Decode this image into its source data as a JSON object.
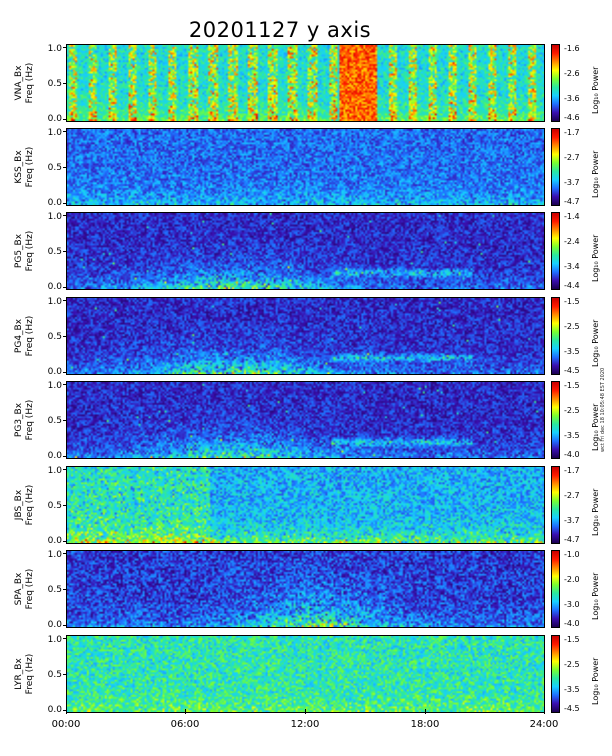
{
  "title": "20201127 y axis",
  "side_note": "wct Fri dec 18 10:05:48 EST 2020",
  "chart_data": {
    "type": "heatmap",
    "x_axis": {
      "range": [
        0,
        24
      ],
      "unit": "hours",
      "tick_labels": [
        "00:00",
        "06:00",
        "12:00",
        "18:00",
        "24:00"
      ]
    },
    "y_axis": {
      "range": [
        0,
        1.0
      ],
      "unit": "Hz",
      "tick_labels": [
        "0.0",
        "0.5",
        "1.0"
      ]
    },
    "colorbar_label": "Log₁₀ Power",
    "colormap": [
      "#1a0050",
      "#3a0fb0",
      "#1f6fff",
      "#17d0ff",
      "#2be8a0",
      "#7bff2f",
      "#ffff00",
      "#ff8c00",
      "#ff1a00",
      "#c80000"
    ],
    "panels": [
      {
        "station": "VNA",
        "ylabel_top": "VNA_Bx",
        "ylabel_bottom": "Freq (Hz)",
        "cbar_ticks": [
          "-1.6",
          "-2.6",
          "-3.6",
          "-4.6"
        ],
        "cbar_range": [
          -4.6,
          -1.6
        ]
      },
      {
        "station": "KSS",
        "ylabel_top": "KSS_Bx",
        "ylabel_bottom": "Freq (Hz)",
        "cbar_ticks": [
          "-1.7",
          "-2.7",
          "-3.7",
          "-4.7"
        ],
        "cbar_range": [
          -4.7,
          -1.7
        ]
      },
      {
        "station": "PG5",
        "ylabel_top": "PG5_Bx",
        "ylabel_bottom": "Freq (Hz)",
        "cbar_ticks": [
          "-1.4",
          "-2.4",
          "-3.4",
          "-4.4"
        ],
        "cbar_range": [
          -4.4,
          -1.4
        ]
      },
      {
        "station": "PG4",
        "ylabel_top": "PG4_Bx",
        "ylabel_bottom": "Freq (Hz)",
        "cbar_ticks": [
          "-1.5",
          "-2.5",
          "-3.5",
          "-4.5"
        ],
        "cbar_range": [
          -4.5,
          -1.5
        ]
      },
      {
        "station": "PG3",
        "ylabel_top": "PG3_Bx",
        "ylabel_bottom": "Freq (Hz)",
        "cbar_ticks": [
          "-1.5",
          "-2.5",
          "-3.5",
          "-4.0"
        ],
        "cbar_range": [
          -4.0,
          -1.5
        ]
      },
      {
        "station": "JBS",
        "ylabel_top": "JBS_Bx",
        "ylabel_bottom": "Freq (Hz)",
        "cbar_ticks": [
          "-1.7",
          "-2.7",
          "-3.7",
          "-4.7"
        ],
        "cbar_range": [
          -4.7,
          -1.7
        ]
      },
      {
        "station": "SPA",
        "ylabel_top": "SPA_Bx",
        "ylabel_bottom": "Freq (Hz)",
        "cbar_ticks": [
          "-1.0",
          "-2.0",
          "-3.0",
          "-4.0"
        ],
        "cbar_range": [
          -4.0,
          -1.0
        ]
      },
      {
        "station": "LYR",
        "ylabel_top": "LYR_Bx",
        "ylabel_bottom": "Freq (Hz)",
        "cbar_ticks": [
          "-1.5",
          "-2.5",
          "-3.5",
          "-4.5"
        ],
        "cbar_range": [
          -4.5,
          -1.5
        ]
      }
    ]
  }
}
